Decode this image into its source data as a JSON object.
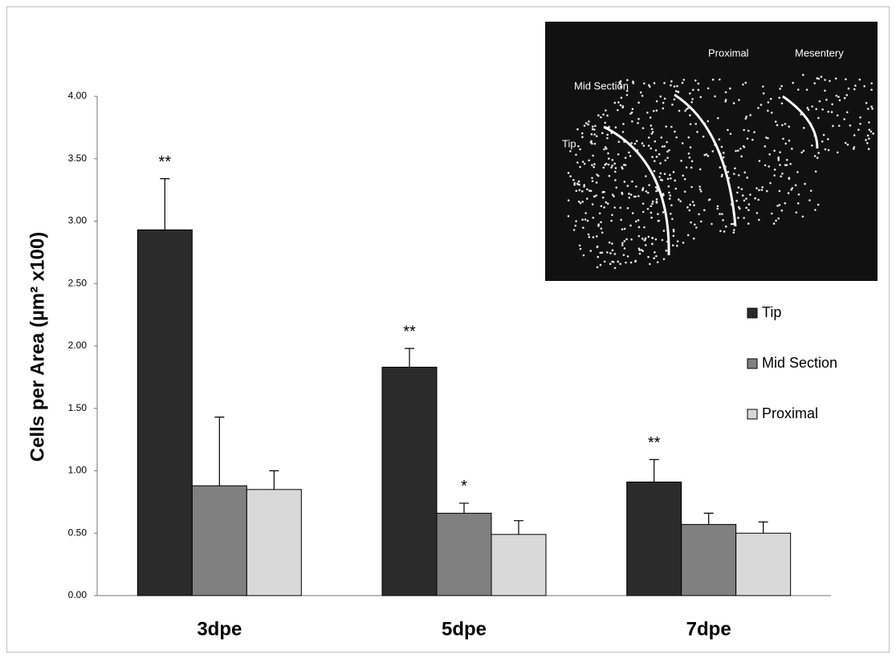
{
  "chart_data": {
    "type": "bar",
    "y_label": "Cells per Area (µm² x100)",
    "categories": [
      "3dpe",
      "5dpe",
      "7dpe"
    ],
    "series": [
      {
        "name": "Tip",
        "color": "#2b2b2b",
        "values": [
          2.93,
          1.83,
          0.91
        ],
        "errors": [
          0.41,
          0.15,
          0.18
        ],
        "significance": [
          "**",
          "**",
          "**"
        ]
      },
      {
        "name": "Mid Section",
        "color": "#808080",
        "values": [
          0.88,
          0.66,
          0.57
        ],
        "errors": [
          0.55,
          0.08,
          0.09
        ],
        "significance": [
          null,
          "*",
          null
        ]
      },
      {
        "name": "Proximal",
        "color": "#d9d9d9",
        "values": [
          0.85,
          0.49,
          0.5
        ],
        "errors": [
          0.15,
          0.11,
          0.09
        ],
        "significance": [
          null,
          null,
          null
        ]
      }
    ],
    "ylim": [
      0,
      4
    ],
    "yticks": [
      {
        "value": 0,
        "label": "0.00"
      },
      {
        "value": 0.5,
        "label": "0.50"
      },
      {
        "value": 1,
        "label": "1.00"
      },
      {
        "value": 1.5,
        "label": "1.50"
      },
      {
        "value": 2,
        "label": "2.00"
      },
      {
        "value": 2.5,
        "label": "2.50"
      },
      {
        "value": 3,
        "label": "3.00"
      },
      {
        "value": 3.5,
        "label": "3.50"
      },
      {
        "value": 4,
        "label": "4.00"
      }
    ],
    "grid": false,
    "legend": "right",
    "inset_labels": [
      "Tip",
      "Mid Section",
      "Proximal",
      "Mesentery"
    ]
  }
}
